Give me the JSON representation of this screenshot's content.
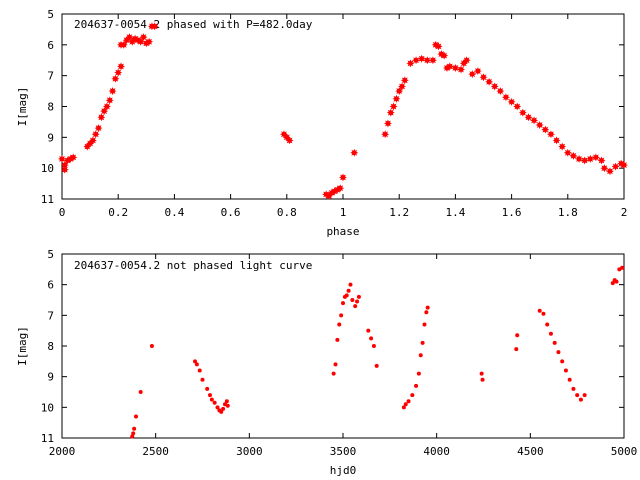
{
  "chart_data": [
    {
      "type": "scatter",
      "title": "204637-0054.2 phased with P=482.0day",
      "xlabel": "phase",
      "ylabel": "I[mag]",
      "xlim": [
        0,
        2
      ],
      "ylim": [
        5,
        11
      ],
      "y_inverted": true,
      "x_ticks": [
        "0",
        "0.2",
        "0.4",
        "0.6",
        "0.8",
        "1",
        "1.2",
        "1.4",
        "1.6",
        "1.8",
        "2"
      ],
      "y_ticks": [
        "5",
        "6",
        "7",
        "8",
        "9",
        "10",
        "11"
      ],
      "grid": false,
      "marker_color": "#ff0000",
      "series": [
        {
          "points": [
            [
              0.0,
              9.7
            ],
            [
              0.01,
              9.9
            ],
            [
              0.01,
              10.05
            ],
            [
              0.02,
              9.75
            ],
            [
              0.03,
              9.7
            ],
            [
              0.04,
              9.65
            ],
            [
              0.09,
              9.3
            ],
            [
              0.1,
              9.2
            ],
            [
              0.11,
              9.1
            ],
            [
              0.12,
              8.9
            ],
            [
              0.13,
              8.7
            ],
            [
              0.14,
              8.35
            ],
            [
              0.15,
              8.15
            ],
            [
              0.16,
              8.0
            ],
            [
              0.17,
              7.8
            ],
            [
              0.18,
              7.5
            ],
            [
              0.19,
              7.1
            ],
            [
              0.2,
              6.9
            ],
            [
              0.21,
              6.7
            ],
            [
              0.21,
              6.0
            ],
            [
              0.22,
              6.0
            ],
            [
              0.23,
              5.85
            ],
            [
              0.24,
              5.75
            ],
            [
              0.25,
              5.9
            ],
            [
              0.26,
              5.8
            ],
            [
              0.27,
              5.85
            ],
            [
              0.28,
              5.9
            ],
            [
              0.29,
              5.75
            ],
            [
              0.3,
              5.95
            ],
            [
              0.31,
              5.9
            ],
            [
              0.32,
              5.4
            ],
            [
              0.33,
              5.4
            ],
            [
              0.79,
              8.9
            ],
            [
              0.8,
              9.0
            ],
            [
              0.81,
              9.1
            ],
            [
              0.94,
              10.85
            ],
            [
              0.95,
              10.9
            ],
            [
              0.96,
              10.8
            ],
            [
              0.97,
              10.75
            ],
            [
              0.98,
              10.7
            ],
            [
              0.99,
              10.65
            ],
            [
              1.0,
              10.3
            ],
            [
              1.04,
              9.5
            ],
            [
              1.15,
              8.9
            ],
            [
              1.16,
              8.55
            ],
            [
              1.17,
              8.2
            ],
            [
              1.18,
              8.0
            ],
            [
              1.19,
              7.75
            ],
            [
              1.2,
              7.5
            ],
            [
              1.21,
              7.35
            ],
            [
              1.22,
              7.15
            ],
            [
              1.24,
              6.6
            ],
            [
              1.26,
              6.5
            ],
            [
              1.28,
              6.45
            ],
            [
              1.3,
              6.5
            ],
            [
              1.32,
              6.5
            ],
            [
              1.33,
              6.0
            ],
            [
              1.34,
              6.05
            ],
            [
              1.35,
              6.3
            ],
            [
              1.36,
              6.35
            ],
            [
              1.37,
              6.75
            ],
            [
              1.38,
              6.7
            ],
            [
              1.4,
              6.75
            ],
            [
              1.42,
              6.8
            ],
            [
              1.43,
              6.6
            ],
            [
              1.44,
              6.5
            ],
            [
              1.46,
              6.95
            ],
            [
              1.48,
              6.85
            ],
            [
              1.5,
              7.05
            ],
            [
              1.52,
              7.2
            ],
            [
              1.54,
              7.35
            ],
            [
              1.56,
              7.5
            ],
            [
              1.58,
              7.7
            ],
            [
              1.6,
              7.85
            ],
            [
              1.62,
              8.0
            ],
            [
              1.64,
              8.2
            ],
            [
              1.66,
              8.35
            ],
            [
              1.68,
              8.45
            ],
            [
              1.7,
              8.6
            ],
            [
              1.72,
              8.75
            ],
            [
              1.74,
              8.9
            ],
            [
              1.76,
              9.1
            ],
            [
              1.78,
              9.3
            ],
            [
              1.8,
              9.5
            ],
            [
              1.82,
              9.6
            ],
            [
              1.84,
              9.7
            ],
            [
              1.86,
              9.75
            ],
            [
              1.88,
              9.7
            ],
            [
              1.9,
              9.65
            ],
            [
              1.92,
              9.75
            ],
            [
              1.93,
              10.0
            ],
            [
              1.95,
              10.1
            ],
            [
              1.97,
              9.95
            ],
            [
              1.99,
              9.85
            ],
            [
              2.0,
              9.9
            ]
          ]
        }
      ]
    },
    {
      "type": "scatter",
      "title": "204637-0054.2 not phased light curve",
      "xlabel": "hjd0",
      "ylabel": "I[mag]",
      "xlim": [
        2000,
        5000
      ],
      "ylim": [
        5,
        11
      ],
      "y_inverted": true,
      "x_ticks": [
        "2000",
        "2500",
        "3000",
        "3500",
        "4000",
        "4500",
        "5000"
      ],
      "y_ticks": [
        "5",
        "6",
        "7",
        "8",
        "9",
        "10",
        "11"
      ],
      "grid": false,
      "marker_color": "#ff0000",
      "series": [
        {
          "points": [
            [
              2375,
              10.95
            ],
            [
              2380,
              10.85
            ],
            [
              2385,
              10.7
            ],
            [
              2395,
              10.3
            ],
            [
              2420,
              9.5
            ],
            [
              2480,
              8.0
            ],
            [
              2710,
              8.5
            ],
            [
              2720,
              8.6
            ],
            [
              2735,
              8.8
            ],
            [
              2750,
              9.1
            ],
            [
              2775,
              9.4
            ],
            [
              2790,
              9.6
            ],
            [
              2800,
              9.75
            ],
            [
              2815,
              9.85
            ],
            [
              2830,
              10.0
            ],
            [
              2840,
              10.1
            ],
            [
              2850,
              10.15
            ],
            [
              2860,
              10.05
            ],
            [
              2870,
              9.9
            ],
            [
              2880,
              9.8
            ],
            [
              2885,
              9.95
            ],
            [
              3450,
              8.9
            ],
            [
              3460,
              8.6
            ],
            [
              3470,
              7.8
            ],
            [
              3480,
              7.3
            ],
            [
              3490,
              7.0
            ],
            [
              3500,
              6.6
            ],
            [
              3510,
              6.4
            ],
            [
              3520,
              6.35
            ],
            [
              3530,
              6.2
            ],
            [
              3540,
              6.0
            ],
            [
              3550,
              6.5
            ],
            [
              3565,
              6.7
            ],
            [
              3575,
              6.55
            ],
            [
              3585,
              6.4
            ],
            [
              3635,
              7.5
            ],
            [
              3650,
              7.75
            ],
            [
              3665,
              8.0
            ],
            [
              3680,
              8.65
            ],
            [
              3825,
              10.0
            ],
            [
              3835,
              9.9
            ],
            [
              3850,
              9.8
            ],
            [
              3870,
              9.6
            ],
            [
              3890,
              9.3
            ],
            [
              3905,
              8.9
            ],
            [
              3915,
              8.3
            ],
            [
              3925,
              7.9
            ],
            [
              3935,
              7.3
            ],
            [
              3945,
              6.9
            ],
            [
              3952,
              6.75
            ],
            [
              4240,
              8.9
            ],
            [
              4245,
              9.1
            ],
            [
              4425,
              8.1
            ],
            [
              4430,
              7.65
            ],
            [
              4550,
              6.85
            ],
            [
              4570,
              6.95
            ],
            [
              4590,
              7.3
            ],
            [
              4610,
              7.6
            ],
            [
              4630,
              7.9
            ],
            [
              4650,
              8.2
            ],
            [
              4670,
              8.5
            ],
            [
              4690,
              8.8
            ],
            [
              4710,
              9.1
            ],
            [
              4730,
              9.4
            ],
            [
              4750,
              9.6
            ],
            [
              4770,
              9.75
            ],
            [
              4790,
              9.6
            ],
            [
              4940,
              5.95
            ],
            [
              4950,
              5.85
            ],
            [
              4960,
              5.9
            ],
            [
              4975,
              5.5
            ],
            [
              4990,
              5.45
            ]
          ]
        }
      ]
    }
  ]
}
